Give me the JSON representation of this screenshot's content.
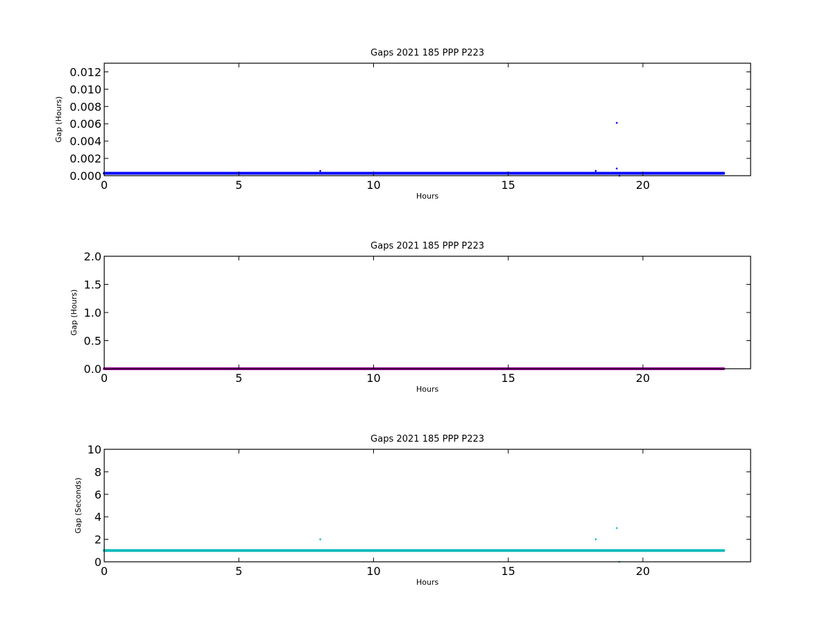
{
  "chart_data": [
    {
      "type": "scatter",
      "title": "Gaps 2021 185 PPP  P223",
      "xlabel": "Hours",
      "ylabel": "Gap (Hours)",
      "xlim": [
        0,
        24
      ],
      "ylim": [
        0,
        0.013
      ],
      "xticks": [
        "0",
        "5",
        "10",
        "15",
        "20"
      ],
      "xtick_values": [
        0,
        5,
        10,
        15,
        20
      ],
      "yticks": [
        "0.000",
        "0.002",
        "0.004",
        "0.006",
        "0.008",
        "0.010",
        "0.012"
      ],
      "ytick_values": [
        0,
        0.002,
        0.004,
        0.006,
        0.008,
        0.01,
        0.012
      ],
      "color": "#0000ff",
      "baseline": {
        "x_start": 0,
        "x_end": 23,
        "y": 0.00028
      },
      "points": [
        {
          "x": 8.02,
          "y": 0.00056
        },
        {
          "x": 18.25,
          "y": 0.00056
        },
        {
          "x": 19.03,
          "y": 0.00083
        },
        {
          "x": 19.03,
          "y": 0.0061
        },
        {
          "x": 19.13,
          "y": 0.0
        }
      ]
    },
    {
      "type": "scatter",
      "title": "Gaps 2021 185 PPP  P223",
      "xlabel": "Hours",
      "ylabel": "Gap (Hours)",
      "xlim": [
        0,
        24
      ],
      "ylim": [
        0,
        2.0
      ],
      "xticks": [
        "0",
        "5",
        "10",
        "15",
        "20"
      ],
      "xtick_values": [
        0,
        5,
        10,
        15,
        20
      ],
      "yticks": [
        "0.0",
        "0.5",
        "1.0",
        "1.5",
        "2.0"
      ],
      "ytick_values": [
        0,
        0.5,
        1.0,
        1.5,
        2.0
      ],
      "color": "#990099",
      "baseline": {
        "x_start": 0,
        "x_end": 23,
        "y": 0.00028
      },
      "points": []
    },
    {
      "type": "scatter",
      "title": "Gaps 2021 185 PPP  P223",
      "xlabel": "Hours",
      "ylabel": "Gap (Seconds)",
      "xlim": [
        0,
        24
      ],
      "ylim": [
        0,
        10
      ],
      "xticks": [
        "0",
        "5",
        "10",
        "15",
        "20"
      ],
      "xtick_values": [
        0,
        5,
        10,
        15,
        20
      ],
      "yticks": [
        "0",
        "2",
        "4",
        "6",
        "8",
        "10"
      ],
      "ytick_values": [
        0,
        2,
        4,
        6,
        8,
        10
      ],
      "color": "#11bbbb",
      "baseline": {
        "x_start": 0,
        "x_end": 23,
        "y": 1.0
      },
      "points": [
        {
          "x": 8.02,
          "y": 2.0
        },
        {
          "x": 18.25,
          "y": 2.0
        },
        {
          "x": 19.03,
          "y": 3.0
        },
        {
          "x": 19.13,
          "y": 0.0
        }
      ]
    }
  ]
}
